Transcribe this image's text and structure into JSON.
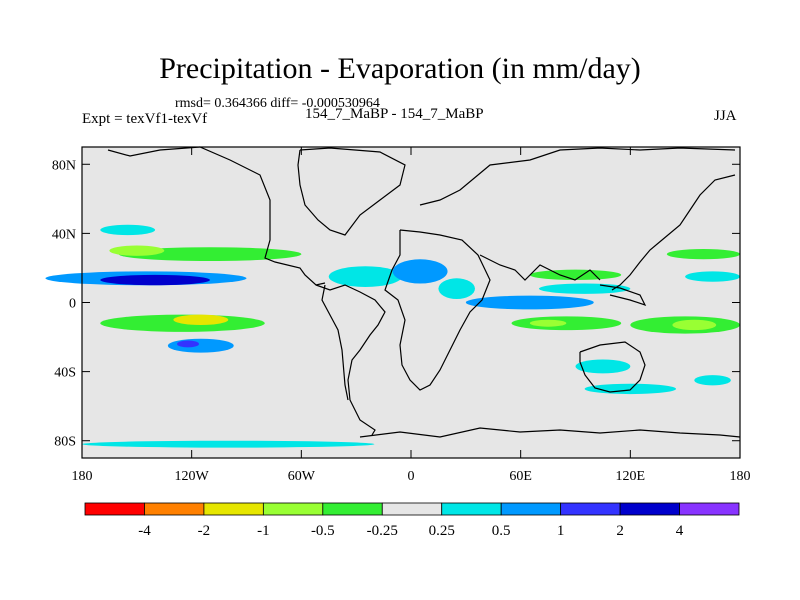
{
  "title": "Precipitation - Evaporation (in mm/day)",
  "stats": "rmsd= 0.364366  diff= -0.000530964",
  "experiment": "Expt = texVf1-texVf",
  "case": "154_7_MaBP - 154_7_MaBP",
  "season": "JJA",
  "y_ticks": [
    "80N",
    "40N",
    "0",
    "40S",
    "80S"
  ],
  "x_ticks": [
    "180",
    "120W",
    "60W",
    "0",
    "60E",
    "120E",
    "180"
  ],
  "colorbar": {
    "labels": [
      "-4",
      "-2",
      "-1",
      "-0.5",
      "-0.25",
      "0.25",
      "0.5",
      "1",
      "2",
      "4"
    ],
    "colors": [
      "#ff0000",
      "#ff8000",
      "#e6e600",
      "#99ff33",
      "#33ee33",
      "#e6e6e6",
      "#00e6e6",
      "#0099ff",
      "#3333ff",
      "#0000cc",
      "#8833ff"
    ]
  },
  "chart_data": {
    "type": "map",
    "projection": "cylindrical-equidistant",
    "lon_range": [
      -180,
      180
    ],
    "lat_range": [
      -90,
      90
    ],
    "field": "P-E difference (mm/day)",
    "anomaly_features": [
      {
        "lon": -145,
        "lat": 14,
        "lon_half": 55,
        "lat_half": 4,
        "level": 7
      },
      {
        "lon": -140,
        "lat": 13,
        "lon_half": 30,
        "lat_half": 3,
        "level": 9
      },
      {
        "lon": -110,
        "lat": 28,
        "lon_half": 50,
        "lat_half": 4,
        "level": 4
      },
      {
        "lon": -150,
        "lat": 30,
        "lon_half": 15,
        "lat_half": 3,
        "level": 3
      },
      {
        "lon": -125,
        "lat": -12,
        "lon_half": 45,
        "lat_half": 5,
        "level": 4
      },
      {
        "lon": -115,
        "lat": -10,
        "lon_half": 15,
        "lat_half": 3,
        "level": 2
      },
      {
        "lon": -115,
        "lat": -25,
        "lon_half": 18,
        "lat_half": 4,
        "level": 7
      },
      {
        "lon": -122,
        "lat": -24,
        "lon_half": 6,
        "lat_half": 2,
        "level": 8
      },
      {
        "lon": -25,
        "lat": 15,
        "lon_half": 20,
        "lat_half": 6,
        "level": 6
      },
      {
        "lon": 5,
        "lat": 18,
        "lon_half": 15,
        "lat_half": 7,
        "level": 7
      },
      {
        "lon": 25,
        "lat": 8,
        "lon_half": 10,
        "lat_half": 6,
        "level": 6
      },
      {
        "lon": 65,
        "lat": 0,
        "lon_half": 35,
        "lat_half": 4,
        "level": 7
      },
      {
        "lon": 90,
        "lat": 16,
        "lon_half": 25,
        "lat_half": 3,
        "level": 4
      },
      {
        "lon": 95,
        "lat": 8,
        "lon_half": 25,
        "lat_half": 3,
        "level": 6
      },
      {
        "lon": 85,
        "lat": -12,
        "lon_half": 30,
        "lat_half": 4,
        "level": 4
      },
      {
        "lon": 75,
        "lat": -12,
        "lon_half": 10,
        "lat_half": 2,
        "level": 3
      },
      {
        "lon": 150,
        "lat": -13,
        "lon_half": 30,
        "lat_half": 5,
        "level": 4
      },
      {
        "lon": 155,
        "lat": -13,
        "lon_half": 12,
        "lat_half": 3,
        "level": 3
      },
      {
        "lon": 160,
        "lat": 28,
        "lon_half": 20,
        "lat_half": 3,
        "level": 4
      },
      {
        "lon": 165,
        "lat": 15,
        "lon_half": 15,
        "lat_half": 3,
        "level": 6
      },
      {
        "lon": 105,
        "lat": -37,
        "lon_half": 15,
        "lat_half": 4,
        "level": 6
      },
      {
        "lon": 120,
        "lat": -50,
        "lon_half": 25,
        "lat_half": 3,
        "level": 6
      },
      {
        "lon": 165,
        "lat": -45,
        "lon_half": 10,
        "lat_half": 3,
        "level": 6
      },
      {
        "lon": -155,
        "lat": 42,
        "lon_half": 15,
        "lat_half": 3,
        "level": 6
      },
      {
        "lon": -100,
        "lat": -82,
        "lon_half": 80,
        "lat_half": 2,
        "level": 6
      }
    ]
  }
}
